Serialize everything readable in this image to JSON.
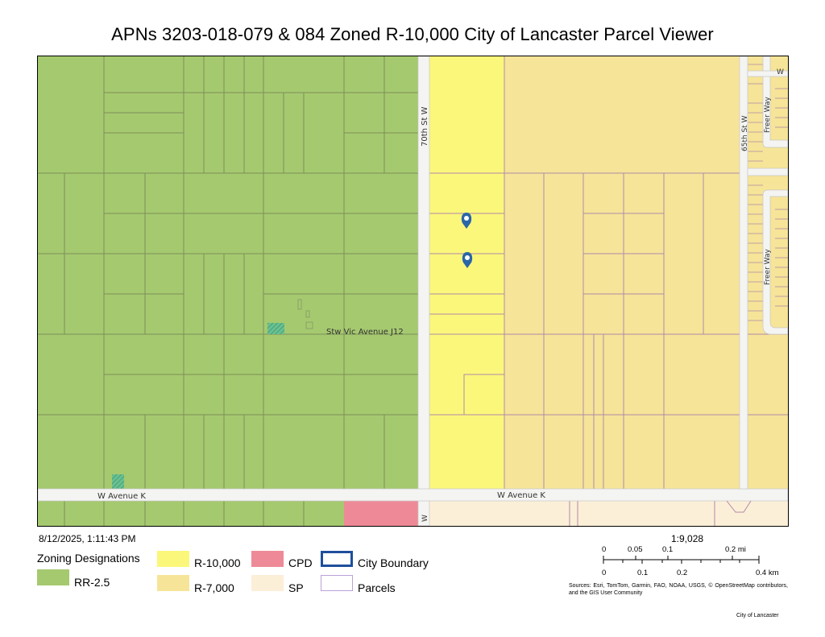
{
  "title": "APNs 3203-018-079 & 084 Zoned R-10,000 City of Lancaster Parcel Viewer",
  "timestamp": "8/12/2025, 1:11:43 PM",
  "map": {
    "street_labels": {
      "seventieth": "70th St W",
      "sixtyfifth": "65th St W",
      "freer_top": "Freer Way",
      "freer_bottom": "Freer Way",
      "avenue_k_left": "W Avenue K",
      "avenue_k_right": "W Avenue K",
      "stw_vic": "Stw Vic Avenue J12",
      "w_top_right": "W",
      "w_bottom": "W"
    },
    "markers": [
      "APN 3203-018-079",
      "APN 3203-018-084"
    ]
  },
  "legend": {
    "title": "Zoning Designations",
    "items": [
      {
        "label": "RR-2.5",
        "color": "#a5c96f"
      },
      {
        "label": "R-10,000",
        "color": "#fbf77a"
      },
      {
        "label": "R-7,000",
        "color": "#f6e498"
      },
      {
        "label": "CPD",
        "color": "#ee8a97"
      },
      {
        "label": "SP",
        "color": "#fcefd8"
      },
      {
        "label": "City Boundary",
        "color": "#1f4e9c"
      },
      {
        "label": "Parcels",
        "color": "#b9a2d8"
      }
    ]
  },
  "scale": {
    "ratio": "1:9,028",
    "mi_labels": [
      "0",
      "0.05",
      "0.1",
      "0.2 mi"
    ],
    "km_labels": [
      "0",
      "0.1",
      "0.2",
      "0.4 km"
    ]
  },
  "sources": "Sources: Esri, TomTom, Garmin, FAO, NOAA, USGS, © OpenStreetMap contributors, and the GIS User Community",
  "credit": "City of Lancaster"
}
